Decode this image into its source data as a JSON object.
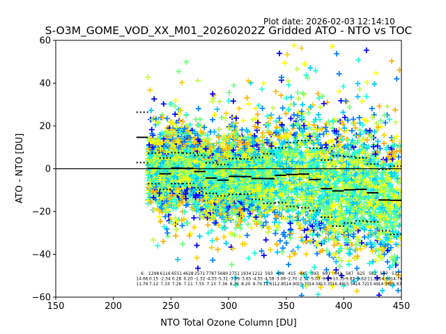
{
  "chart_data": {
    "type": "scatter",
    "title": "S-O3M_GOME_VOD_XX_M01_20260202Z Gridded ATO - NTO vs TOC",
    "plot_date": "Plot date: 2026-02-03 12:14:10",
    "xlabel": "NTO Total Ozone Column [DU]",
    "ylabel": "ATO - NTO [DU]",
    "xlim": [
      150,
      450
    ],
    "ylim": [
      -60,
      60
    ],
    "xticks": [
      150,
      200,
      250,
      300,
      350,
      400,
      450
    ],
    "xtick_labels": [
      "150",
      "200",
      "250",
      "300",
      "350",
      "400",
      "450"
    ],
    "yticks": [
      60,
      40,
      20,
      0,
      -20,
      -40,
      -60
    ],
    "ytick_labels": [
      "60",
      "40",
      "20",
      "0",
      "−20",
      "−40",
      "−60"
    ],
    "zero_line": 0,
    "bin_width": 10,
    "bins": [
      {
        "center": 225,
        "count": "6",
        "mean": 14.66,
        "std": 11.76
      },
      {
        "center": 235,
        "count": "1298",
        "mean": 0.15,
        "std": 7.12
      },
      {
        "center": 245,
        "count": "6116",
        "mean": -2.34,
        "std": 7.33
      },
      {
        "center": 255,
        "count": "6551",
        "mean": 0.28,
        "std": 7.26
      },
      {
        "center": 265,
        "count": "4628",
        "mean": 0.2,
        "std": 7.11
      },
      {
        "center": 275,
        "count": "2571",
        "mean": -1.32,
        "std": 7.55
      },
      {
        "center": 285,
        "count": "7787",
        "mean": -4.33,
        "std": 7.13
      },
      {
        "center": 295,
        "count": "5680",
        "mean": -5.31,
        "std": 7.36
      },
      {
        "center": 305,
        "count": "2751",
        "mean": -3.59,
        "std": 8.36
      },
      {
        "center": 315,
        "count": "1934",
        "mean": -3.65,
        "std": 8.2
      },
      {
        "center": 325,
        "count": "1212",
        "mean": -4.55,
        "std": 9.79
      },
      {
        "center": 335,
        "count": "593",
        "mean": -4.58,
        "std": 11.61
      },
      {
        "center": 345,
        "count": "498",
        "mean": -3.06,
        "std": 12.85
      },
      {
        "center": 355,
        "count": "415",
        "mean": -2.7,
        "std": 14.9
      },
      {
        "center": 365,
        "count": "445",
        "mean": -2.52,
        "std": 15.7
      },
      {
        "center": 375,
        "count": "593",
        "mean": -5.03,
        "std": 14.58
      },
      {
        "center": 385,
        "count": "691",
        "mean": -9.29,
        "std": 13.35
      },
      {
        "center": 395,
        "count": "641",
        "mean": -10.35,
        "std": 16.46
      },
      {
        "center": 405,
        "count": "587",
        "mean": -9.83,
        "std": 15.54
      },
      {
        "center": 415,
        "count": "625",
        "mean": -9.62,
        "std": 14.72
      },
      {
        "center": 425,
        "count": "582",
        "mean": -11.28,
        "std": 13.49
      },
      {
        "center": 435,
        "count": "547",
        "mean": -14.6,
        "std": 14.38
      },
      {
        "center": 445,
        "count": "532",
        "mean": -14.76,
        "std": 15.93
      }
    ],
    "marker": "plus",
    "colormap": [
      "#0000ff",
      "#0080ff",
      "#00c8ff",
      "#20ffd8",
      "#70ff80",
      "#c0ff40",
      "#ffff00",
      "#ffd000",
      "#ffb000"
    ],
    "grid": false,
    "legend": "none"
  }
}
